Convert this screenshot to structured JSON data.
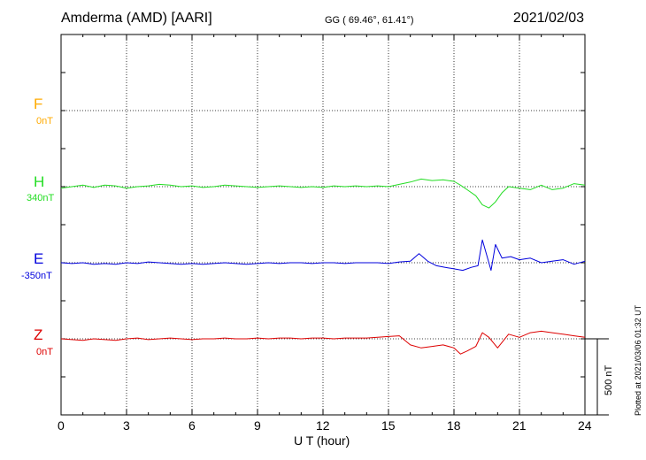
{
  "header": {
    "station": "Amderma (AMD)  [AARI]",
    "coords": "GG ( 69.46°,  61.41°)",
    "date": "2021/02/03"
  },
  "plotted_at": "Plotted at 2021/03/06 01:32 UT",
  "chart_data": {
    "type": "line",
    "xlabel": "U T (hour)",
    "xlim": [
      0,
      24
    ],
    "xticks": [
      "0",
      "3",
      "6",
      "9",
      "12",
      "15",
      "18",
      "21",
      "24"
    ],
    "scale_bar": "500 nT",
    "series": [
      {
        "name": "F",
        "baseline": "0nT",
        "color": "#ffaa00",
        "x": [],
        "y": []
      },
      {
        "name": "H",
        "baseline": "340nT",
        "color": "#22dd22",
        "x": [
          0,
          0.5,
          1,
          1.5,
          2,
          2.5,
          3,
          3.5,
          4,
          4.5,
          5,
          5.5,
          6,
          6.5,
          7,
          7.5,
          8,
          8.5,
          9,
          9.5,
          10,
          10.5,
          11,
          11.5,
          12,
          12.5,
          13,
          13.5,
          14,
          14.5,
          15,
          15.5,
          16,
          16.5,
          17,
          17.5,
          18,
          18.3,
          18.6,
          19,
          19.3,
          19.6,
          19.9,
          20.2,
          20.5,
          21,
          21.5,
          22,
          22.5,
          23,
          23.5,
          24
        ],
        "y": [
          -10,
          0,
          10,
          -5,
          10,
          5,
          -10,
          0,
          5,
          15,
          10,
          0,
          5,
          -5,
          0,
          10,
          5,
          0,
          -5,
          0,
          5,
          0,
          -5,
          0,
          -5,
          5,
          0,
          5,
          0,
          5,
          0,
          15,
          30,
          50,
          40,
          45,
          35,
          10,
          -20,
          -60,
          -120,
          -140,
          -100,
          -40,
          0,
          -10,
          -20,
          10,
          -20,
          -10,
          20,
          10
        ]
      },
      {
        "name": "E",
        "baseline": "-350nT",
        "color": "#0000dd",
        "x": [
          0,
          0.5,
          1,
          1.5,
          2,
          2.5,
          3,
          3.5,
          4,
          4.5,
          5,
          5.5,
          6,
          6.5,
          7,
          7.5,
          8,
          8.5,
          9,
          9.5,
          10,
          10.5,
          11,
          11.5,
          12,
          12.5,
          13,
          13.5,
          14,
          14.5,
          15,
          15.5,
          16,
          16.4,
          16.8,
          17.2,
          17.6,
          18,
          18.4,
          18.8,
          19.1,
          19.3,
          19.5,
          19.7,
          19.9,
          20.2,
          20.6,
          21,
          21.5,
          22,
          22.5,
          23,
          23.5,
          24
        ],
        "y": [
          0,
          -5,
          0,
          -10,
          -5,
          -10,
          0,
          -5,
          5,
          0,
          -5,
          -10,
          -5,
          -10,
          -5,
          0,
          -5,
          -10,
          -5,
          0,
          -5,
          0,
          0,
          -5,
          0,
          0,
          -5,
          0,
          0,
          0,
          -5,
          5,
          10,
          60,
          10,
          -20,
          -30,
          -40,
          -50,
          -30,
          -20,
          150,
          50,
          -50,
          120,
          30,
          40,
          20,
          30,
          0,
          10,
          20,
          -10,
          10
        ]
      },
      {
        "name": "Z",
        "baseline": "0nT",
        "color": "#dd0000",
        "x": [
          0,
          0.5,
          1,
          1.5,
          2,
          2.5,
          3,
          3.5,
          4,
          4.5,
          5,
          5.5,
          6,
          6.5,
          7,
          7.5,
          8,
          8.5,
          9,
          9.5,
          10,
          10.5,
          11,
          11.5,
          12,
          12.5,
          13,
          13.5,
          14,
          14.5,
          15,
          15.5,
          16,
          16.5,
          17,
          17.5,
          18,
          18.3,
          18.6,
          19,
          19.3,
          19.6,
          20,
          20.5,
          21,
          21.5,
          22,
          22.5,
          23,
          23.5,
          24
        ],
        "y": [
          0,
          -5,
          -10,
          0,
          -5,
          -10,
          0,
          5,
          -5,
          0,
          5,
          0,
          -5,
          0,
          0,
          5,
          0,
          0,
          5,
          0,
          5,
          5,
          0,
          5,
          5,
          0,
          5,
          5,
          5,
          10,
          15,
          20,
          -40,
          -60,
          -50,
          -40,
          -60,
          -100,
          -80,
          -50,
          40,
          10,
          -60,
          30,
          10,
          40,
          50,
          40,
          30,
          20,
          10
        ]
      }
    ]
  }
}
